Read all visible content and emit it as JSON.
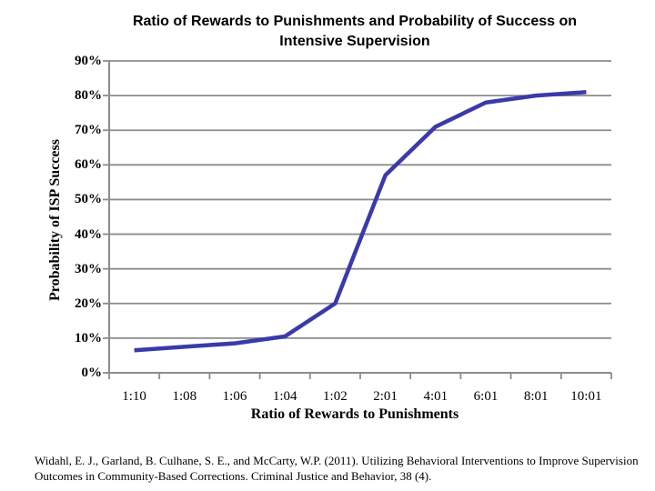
{
  "slide": {
    "footer_line1": "Widahl, E. J., Garland, B. Culhane, S. E., and McCarty, W.P. (2011). Utilizing Behavioral Interventions to Improve Supervision",
    "footer_line2": "Outcomes in Community-Based Corrections.  Criminal Justice and Behavior, 38 (4)."
  },
  "chart_data": {
    "type": "line",
    "title": "Ratio of Rewards to Punishments and Probability of Success on Intensive Supervision",
    "xlabel": "Ratio of Rewards to Punishments",
    "ylabel": "Probability of ISP Success",
    "categories": [
      "1:10",
      "1:08",
      "1:06",
      "1:04",
      "1:02",
      "2:01",
      "4:01",
      "6:01",
      "8:01",
      "10:01"
    ],
    "series": [
      {
        "name": "Probability of ISP Success",
        "values": [
          6.5,
          7.5,
          8.5,
          10.5,
          20,
          57,
          71,
          78,
          80,
          81
        ]
      }
    ],
    "y_tick_values": [
      0,
      10,
      20,
      30,
      40,
      50,
      60,
      70,
      80,
      90
    ],
    "y_tick_labels": [
      "0%",
      "10%",
      "20%",
      "30%",
      "40%",
      "50%",
      "60%",
      "70%",
      "80%",
      "90%"
    ],
    "ylim": [
      0,
      90
    ],
    "grid": true,
    "legend": "none",
    "colors": {
      "line": "#3A3AAA",
      "grid": "#8C8C8C",
      "axis": "#8C8C8C",
      "text": "#000000"
    }
  }
}
